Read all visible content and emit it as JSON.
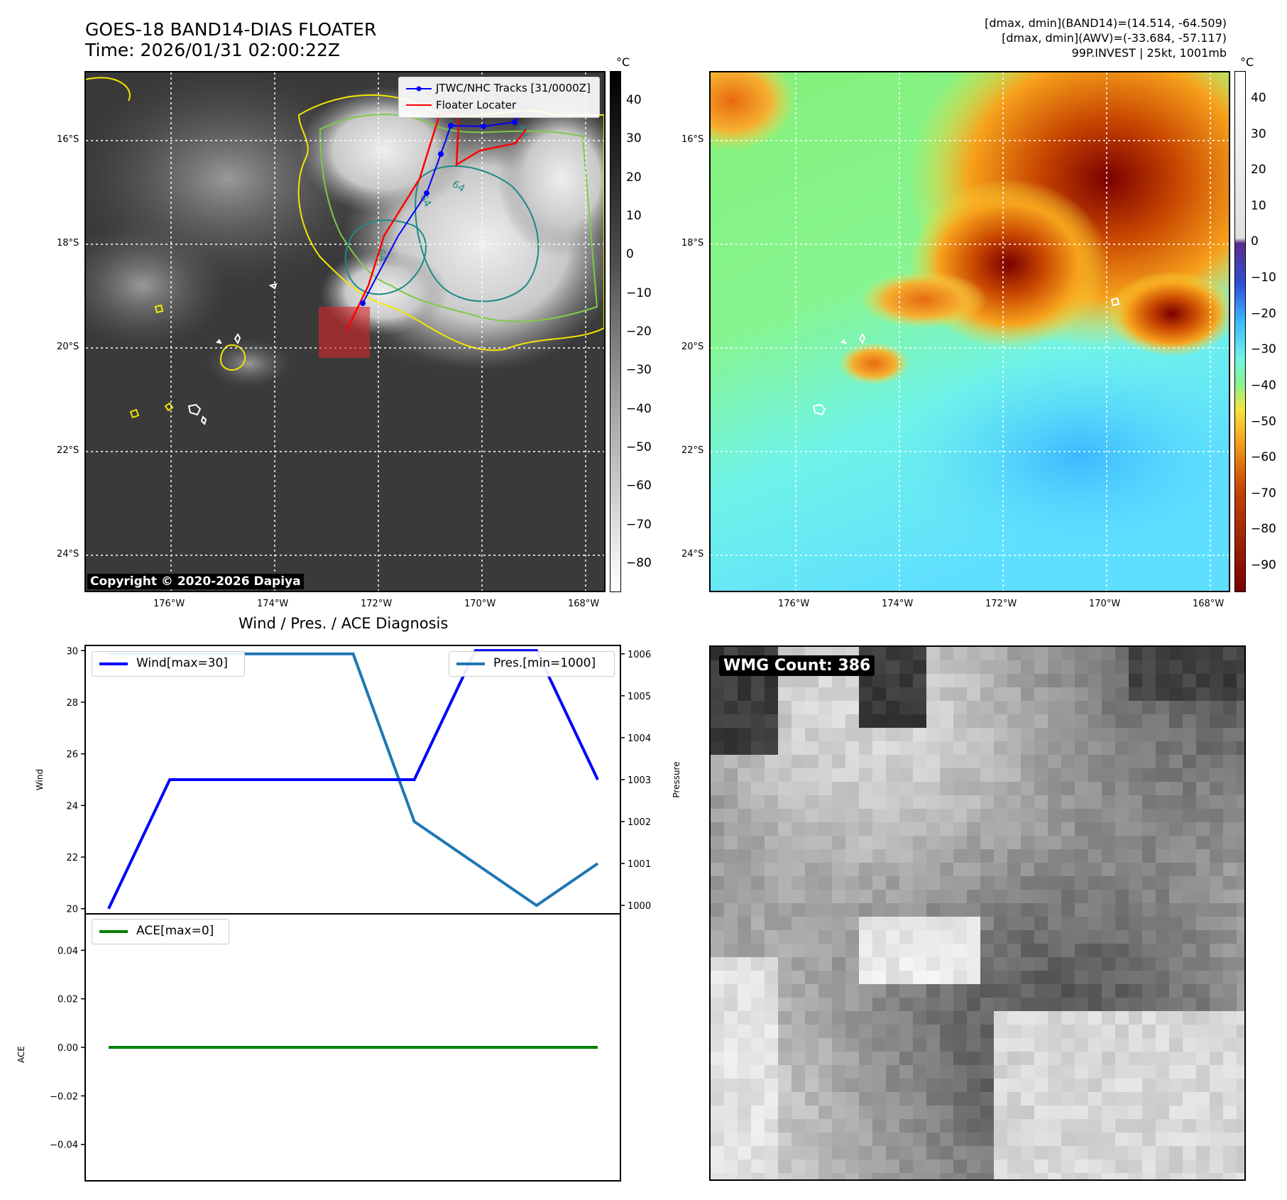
{
  "header": {
    "title_line1": "GOES-18 BAND14-DIAS FLOATER",
    "title_line2": "Time: 2026/01/31 02:00:22Z",
    "info_line1": "[dmax, dmin](BAND14)=(14.514, -64.509)",
    "info_line2": "[dmax, dmin](AWV)=(-33.684, -57.117)",
    "info_line3": "99P.INVEST | 25kt, 1001mb"
  },
  "ir_panel": {
    "colorbar_unit": "°C",
    "colorbar_ticks": [
      "40",
      "30",
      "20",
      "10",
      "0",
      "−10",
      "−20",
      "−30",
      "−40",
      "−50",
      "−60",
      "−70",
      "−80"
    ],
    "lat_labels": [
      "16°S",
      "18°S",
      "20°S",
      "22°S",
      "24°S"
    ],
    "lon_labels": [
      "176°W",
      "174°W",
      "172°W",
      "170°W",
      "168°W"
    ],
    "legend": {
      "tracks": "JTWC/NHC Tracks [31/0000Z]",
      "floater": "Floater Locater"
    },
    "copyright": "Copyright © 2020-2026 Dapiya",
    "contour_labels": [
      "64",
      "64",
      "64",
      "64"
    ],
    "colors": {
      "track": "#0000ff",
      "floater": "#ff0000",
      "box": "#d62728"
    }
  },
  "wv_panel": {
    "colorbar_unit": "°C",
    "colorbar_ticks": [
      "40",
      "30",
      "20",
      "10",
      "0",
      "−10",
      "−20",
      "−30",
      "−40",
      "−50",
      "−60",
      "−70",
      "−80",
      "−90"
    ],
    "lat_labels": [
      "16°S",
      "18°S",
      "20°S",
      "22°S",
      "24°S"
    ],
    "lon_labels": [
      "176°W",
      "174°W",
      "172°W",
      "170°W",
      "168°W"
    ]
  },
  "wmg_panel": {
    "label": "WMG Count: 386"
  },
  "chart_data": [
    {
      "type": "line",
      "title": "Wind / Pres. / ACE Diagnosis",
      "ylabel": "Wind",
      "y2label": "Pressure",
      "x": [
        0,
        1,
        2,
        3,
        4,
        5,
        6,
        7,
        8
      ],
      "series": [
        {
          "name": "Wind[max=30]",
          "axis": "left",
          "color": "#0000ff",
          "values": [
            20,
            25,
            25,
            25,
            25,
            25,
            30,
            30,
            25
          ]
        },
        {
          "name": "Pres.[min=1000]",
          "axis": "right",
          "color": "#1f77b4",
          "values": [
            1006,
            1006,
            1006,
            1006,
            1006,
            1002,
            1001,
            1000,
            1001
          ]
        }
      ],
      "ylim": [
        19.8,
        30.2
      ],
      "y2lim": [
        999.8,
        1006.2
      ],
      "yticks": [
        20,
        22,
        24,
        26,
        28,
        30
      ],
      "y2ticks": [
        1000,
        1001,
        1002,
        1003,
        1004,
        1005,
        1006
      ]
    },
    {
      "type": "line",
      "ylabel": "ACE",
      "x": [
        0,
        1,
        2,
        3,
        4,
        5,
        6,
        7,
        8
      ],
      "series": [
        {
          "name": "ACE[max=0]",
          "color": "#008000",
          "values": [
            0,
            0,
            0,
            0,
            0,
            0,
            0,
            0,
            0
          ]
        }
      ],
      "ylim": [
        -0.055,
        0.055
      ],
      "yticks": [
        0.04,
        0.02,
        0.0,
        -0.02,
        -0.04
      ],
      "ytick_labels": [
        "0.04",
        "0.02",
        "0.00",
        "−0.02",
        "−0.04"
      ]
    }
  ]
}
